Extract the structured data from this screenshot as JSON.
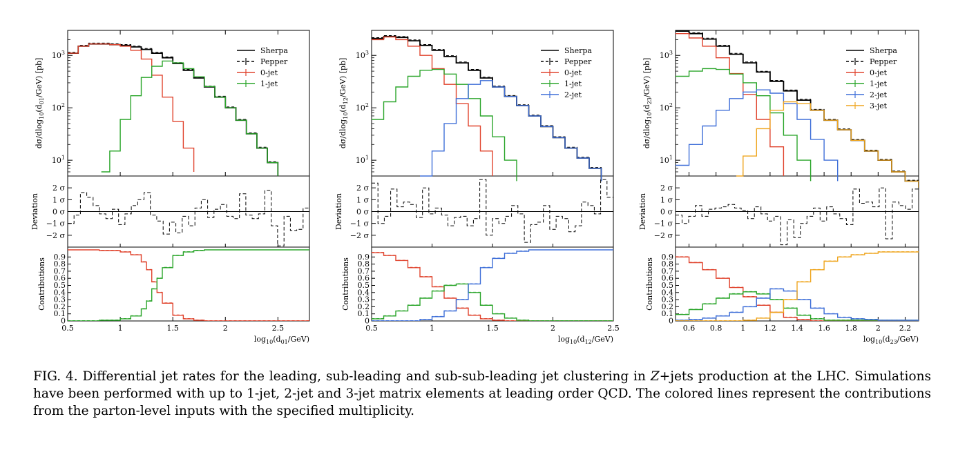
{
  "legend": {
    "sherpa": "Sherpa",
    "pepper": "Pepper",
    "jets": [
      "0-jet",
      "1-jet",
      "2-jet",
      "3-jet"
    ]
  },
  "colors": {
    "sherpa": "#000000",
    "pepper": "#000000",
    "jet0": "#e0442e",
    "jet1": "#2aa52a",
    "jet2": "#3f6fd8",
    "jet3": "#efa620"
  },
  "labels": {
    "ylabel_main": [
      "dσ/dlog",
      "10",
      "(d",
      "01",
      "/GeV) [pb]"
    ],
    "ylabel_dev": "Deviation",
    "ylabel_contrib": "Contributions",
    "dev_ticks": [
      "2 σ",
      "1 σ",
      "0 σ",
      "−1 σ",
      "−2 σ"
    ],
    "contrib_ticks": [
      "0",
      "0.1",
      "0.2",
      "0.3",
      "0.4",
      "0.5",
      "0.6",
      "0.7",
      "0.8",
      "0.9"
    ],
    "log_ticks": [
      "10",
      "10",
      "10"
    ],
    "log_exps": [
      "1",
      "2",
      "3"
    ]
  },
  "chart_data": [
    {
      "type": "line",
      "panel": "left",
      "xlabel_main": "log",
      "xlabel_sub": "10",
      "xlabel_var": "(d",
      "xlabel_varsub": "01",
      "xlabel_unit": "/GeV)",
      "ylabel_sub": "01",
      "xticks": [
        "0.5",
        "1",
        "1.5",
        "2",
        "2.5"
      ],
      "xlim": [
        0.5,
        2.8
      ],
      "ylog": true,
      "ylim": [
        5,
        3000
      ],
      "series_main": [
        {
          "name": "Sherpa",
          "x": [
            0.5,
            0.6,
            0.7,
            0.8,
            0.9,
            1.0,
            1.1,
            1.2,
            1.3,
            1.4,
            1.5,
            1.6,
            1.7,
            1.8,
            1.9,
            2.0,
            2.1,
            2.2,
            2.3,
            2.4,
            2.5
          ],
          "y": [
            1100,
            1500,
            1650,
            1650,
            1600,
            1550,
            1450,
            1300,
            1100,
            900,
            700,
            520,
            370,
            250,
            160,
            100,
            58,
            32,
            17,
            9,
            5
          ]
        },
        {
          "name": "0-jet",
          "x": [
            0.5,
            0.6,
            0.7,
            0.8,
            0.9,
            1.0,
            1.1,
            1.2,
            1.3,
            1.4,
            1.5,
            1.6,
            1.7
          ],
          "y": [
            1100,
            1500,
            1650,
            1650,
            1600,
            1500,
            1250,
            850,
            420,
            160,
            55,
            17,
            6
          ]
        },
        {
          "name": "1-jet",
          "x": [
            0.82,
            0.9,
            1.0,
            1.1,
            1.2,
            1.3,
            1.4,
            1.5,
            1.6,
            1.7,
            1.8,
            1.9,
            2.0,
            2.1,
            2.2,
            2.3,
            2.4,
            2.5
          ],
          "y": [
            6,
            15,
            60,
            170,
            380,
            620,
            780,
            720,
            560,
            390,
            255,
            160,
            100,
            58,
            32,
            17,
            9,
            5
          ]
        }
      ],
      "deviation": [
        -1,
        -0.3,
        1.6,
        1.2,
        0.5,
        -0.2,
        -0.6,
        0.2,
        -1.1,
        -0.2,
        0.5,
        1.0,
        1.6,
        -0.3,
        -0.8,
        -1.9,
        -0.9,
        -1.8,
        -0.4,
        -1.2,
        0.3,
        1.0,
        -0.5,
        0.2,
        0.6,
        -0.4,
        -0.6,
        1.5,
        -0.3,
        -0.6,
        -0.2,
        1.8,
        -1.2,
        -2.9,
        -0.4,
        -1.6,
        -1.5,
        0.3
      ],
      "contrib": [
        {
          "name": "0-jet",
          "x": [
            0.5,
            0.8,
            1.0,
            1.1,
            1.2,
            1.25,
            1.3,
            1.35,
            1.4,
            1.5,
            1.6,
            1.7,
            1.8,
            2.8
          ],
          "y": [
            1,
            0.99,
            0.97,
            0.93,
            0.83,
            0.72,
            0.55,
            0.4,
            0.25,
            0.08,
            0.03,
            0.01,
            0,
            0
          ]
        },
        {
          "name": "1-jet",
          "x": [
            0.5,
            0.8,
            1.0,
            1.1,
            1.2,
            1.25,
            1.3,
            1.35,
            1.4,
            1.5,
            1.6,
            1.7,
            1.8,
            2.8
          ],
          "y": [
            0,
            0.01,
            0.03,
            0.07,
            0.17,
            0.28,
            0.45,
            0.6,
            0.75,
            0.92,
            0.97,
            0.99,
            1,
            1
          ]
        }
      ]
    },
    {
      "type": "line",
      "panel": "middle",
      "xlabel_main": "log",
      "xlabel_sub": "10",
      "xlabel_var": "(d",
      "xlabel_varsub": "12",
      "xlabel_unit": "/GeV)",
      "ylabel_sub": "12",
      "xticks": [
        "0.5",
        "1",
        "1.5",
        "2",
        "2.5"
      ],
      "xlim": [
        0.5,
        2.5
      ],
      "ylog": true,
      "ylim": [
        5,
        3000
      ],
      "series_main": [
        {
          "name": "Sherpa",
          "x": [
            0.5,
            0.6,
            0.7,
            0.8,
            0.9,
            1.0,
            1.1,
            1.2,
            1.3,
            1.4,
            1.5,
            1.6,
            1.7,
            1.8,
            1.9,
            2.0,
            2.1,
            2.2,
            2.3,
            2.4
          ],
          "y": [
            2100,
            2300,
            2200,
            1900,
            1550,
            1250,
            950,
            720,
            520,
            370,
            250,
            165,
            110,
            70,
            44,
            27,
            17,
            11,
            7,
            4
          ]
        },
        {
          "name": "0-jet",
          "x": [
            0.5,
            0.6,
            0.7,
            0.8,
            0.9,
            1.0,
            1.1,
            1.2,
            1.3,
            1.4,
            1.5
          ],
          "y": [
            2000,
            2250,
            2000,
            1500,
            1000,
            560,
            280,
            120,
            45,
            15,
            5
          ]
        },
        {
          "name": "1-jet",
          "x": [
            0.5,
            0.6,
            0.7,
            0.8,
            0.9,
            1.0,
            1.1,
            1.2,
            1.3,
            1.4,
            1.5,
            1.6,
            1.7
          ],
          "y": [
            60,
            130,
            250,
            400,
            520,
            540,
            440,
            280,
            150,
            70,
            28,
            10,
            4
          ]
        },
        {
          "name": "2-jet",
          "x": [
            0.9,
            1.0,
            1.1,
            1.2,
            1.3,
            1.4,
            1.5,
            1.6,
            1.7,
            1.8,
            1.9,
            2.0,
            2.1,
            2.2,
            2.3,
            2.4
          ],
          "y": [
            5,
            15,
            50,
            150,
            280,
            330,
            250,
            165,
            110,
            70,
            44,
            27,
            17,
            11,
            7,
            4
          ]
        }
      ],
      "deviation": [
        2.4,
        -1.0,
        -0.4,
        1.9,
        0.4,
        0.8,
        0.6,
        -0.5,
        2.0,
        -0.2,
        0.3,
        -0.3,
        -1.2,
        -0.5,
        -0.4,
        -1.2,
        -0.6,
        2.7,
        -2.0,
        -0.6,
        -1.0,
        -0.4,
        0.5,
        -0.2,
        -2.6,
        -1.1,
        -0.9,
        0.5,
        -1.5,
        -0.4,
        -0.6,
        -1.7,
        -1.2,
        0.8,
        0.5,
        -0.2,
        2.7,
        1.2
      ],
      "contrib": [
        {
          "name": "0-jet",
          "x": [
            0.5,
            0.6,
            0.7,
            0.8,
            0.9,
            1.0,
            1.1,
            1.2,
            1.3,
            1.4,
            1.5,
            1.6,
            2.5
          ],
          "y": [
            0.96,
            0.92,
            0.85,
            0.75,
            0.62,
            0.48,
            0.32,
            0.18,
            0.08,
            0.03,
            0.01,
            0,
            0
          ]
        },
        {
          "name": "1-jet",
          "x": [
            0.5,
            0.6,
            0.7,
            0.8,
            0.9,
            1.0,
            1.1,
            1.2,
            1.3,
            1.4,
            1.5,
            1.6,
            1.7,
            1.8,
            2.5
          ],
          "y": [
            0.03,
            0.07,
            0.14,
            0.22,
            0.32,
            0.42,
            0.5,
            0.52,
            0.4,
            0.22,
            0.1,
            0.04,
            0.01,
            0,
            0
          ]
        },
        {
          "name": "2-jet",
          "x": [
            0.5,
            0.9,
            1.0,
            1.1,
            1.2,
            1.3,
            1.4,
            1.5,
            1.6,
            1.7,
            1.8,
            2.5
          ],
          "y": [
            0,
            0.02,
            0.06,
            0.14,
            0.3,
            0.52,
            0.75,
            0.88,
            0.95,
            0.98,
            1,
            1
          ]
        }
      ]
    },
    {
      "type": "line",
      "panel": "right",
      "xlabel_main": "log",
      "xlabel_sub": "10",
      "xlabel_var": "(d",
      "xlabel_varsub": "23",
      "xlabel_unit": "/GeV)",
      "ylabel_sub": "23",
      "xticks": [
        "0.6",
        "0.8",
        "1",
        "1.2",
        "1.4",
        "1.6",
        "1.8",
        "2",
        "2.2"
      ],
      "xlim": [
        0.5,
        2.3
      ],
      "ylog": true,
      "ylim": [
        5,
        3000
      ],
      "series_main": [
        {
          "name": "Sherpa",
          "x": [
            0.5,
            0.6,
            0.7,
            0.8,
            0.9,
            1.0,
            1.1,
            1.2,
            1.3,
            1.4,
            1.5,
            1.6,
            1.7,
            1.8,
            1.9,
            2.0,
            2.1,
            2.2,
            2.3
          ],
          "y": [
            2900,
            2600,
            2050,
            1500,
            1050,
            720,
            480,
            320,
            210,
            140,
            90,
            58,
            38,
            24,
            15,
            10,
            6,
            4,
            3
          ]
        },
        {
          "name": "0-jet",
          "x": [
            0.5,
            0.6,
            0.7,
            0.8,
            0.9,
            1.0,
            1.1,
            1.2,
            1.3
          ],
          "y": [
            2600,
            2150,
            1500,
            900,
            450,
            180,
            60,
            18,
            5
          ]
        },
        {
          "name": "1-jet",
          "x": [
            0.5,
            0.6,
            0.7,
            0.8,
            0.9,
            1.0,
            1.1,
            1.2,
            1.3,
            1.4,
            1.5
          ],
          "y": [
            400,
            500,
            560,
            540,
            440,
            300,
            170,
            80,
            30,
            10,
            4
          ]
        },
        {
          "name": "2-jet",
          "x": [
            0.5,
            0.6,
            0.7,
            0.8,
            0.9,
            1.0,
            1.1,
            1.2,
            1.3,
            1.4,
            1.5,
            1.6,
            1.7
          ],
          "y": [
            8,
            20,
            45,
            90,
            150,
            200,
            220,
            190,
            120,
            60,
            25,
            10,
            4
          ]
        },
        {
          "name": "3-jet",
          "x": [
            0.95,
            1.0,
            1.1,
            1.2,
            1.3,
            1.4,
            1.5,
            1.6,
            1.7,
            1.8,
            1.9,
            2.0,
            2.1,
            2.2,
            2.3
          ],
          "y": [
            5,
            12,
            40,
            90,
            130,
            120,
            90,
            58,
            38,
            24,
            15,
            10,
            6,
            4,
            3
          ]
        }
      ],
      "deviation": [
        -0.3,
        -1.0,
        -0.4,
        0.5,
        -0.4,
        0.2,
        0.3,
        0.4,
        0.6,
        0.3,
        0.1,
        -0.6,
        0.4,
        -0.2,
        -0.8,
        -0.4,
        -2.8,
        -0.7,
        -2.2,
        -1.0,
        -0.4,
        0.3,
        -0.8,
        0.4,
        -0.2,
        -0.6,
        -1.1,
        1.9,
        0.7,
        0.8,
        0.4,
        2.0,
        -2.3,
        0.8,
        0.5,
        0.2,
        1.9
      ],
      "contrib": [
        {
          "name": "0-jet",
          "x": [
            0.5,
            0.6,
            0.7,
            0.8,
            0.9,
            1.0,
            1.1,
            1.2,
            1.3,
            1.4,
            1.5,
            2.3
          ],
          "y": [
            0.9,
            0.82,
            0.72,
            0.6,
            0.47,
            0.34,
            0.22,
            0.12,
            0.05,
            0.02,
            0,
            0
          ]
        },
        {
          "name": "1-jet",
          "x": [
            0.5,
            0.6,
            0.7,
            0.8,
            0.9,
            1.0,
            1.1,
            1.2,
            1.3,
            1.4,
            1.5,
            1.6,
            2.3
          ],
          "y": [
            0.09,
            0.16,
            0.24,
            0.32,
            0.38,
            0.41,
            0.38,
            0.3,
            0.18,
            0.08,
            0.03,
            0.01,
            0
          ]
        },
        {
          "name": "2-jet",
          "x": [
            0.5,
            0.6,
            0.7,
            0.8,
            0.9,
            1.0,
            1.1,
            1.2,
            1.3,
            1.4,
            1.5,
            1.6,
            1.7,
            1.8,
            1.9,
            2.0,
            2.3
          ],
          "y": [
            0.01,
            0.02,
            0.04,
            0.07,
            0.12,
            0.2,
            0.32,
            0.45,
            0.42,
            0.3,
            0.18,
            0.1,
            0.05,
            0.03,
            0.02,
            0.01,
            0
          ]
        },
        {
          "name": "3-jet",
          "x": [
            0.5,
            0.9,
            1.0,
            1.1,
            1.2,
            1.3,
            1.4,
            1.5,
            1.6,
            1.7,
            1.8,
            1.9,
            2.0,
            2.3
          ],
          "y": [
            0,
            0,
            0.01,
            0.04,
            0.12,
            0.3,
            0.55,
            0.72,
            0.84,
            0.9,
            0.93,
            0.95,
            0.97,
            0.98
          ]
        }
      ]
    }
  ],
  "caption": {
    "fig": "FIG. 4.",
    "text1": " Differential jet rates for the leading, sub-leading and sub-sub-leading jet clustering in ",
    "z": "Z",
    "text2": "+jets production at the LHC. Simulations have been performed with up to 1-jet, 2-jet and 3-jet matrix elements at leading order QCD. The colored lines represent the contributions from the parton-level inputs with the specified multiplicity."
  }
}
